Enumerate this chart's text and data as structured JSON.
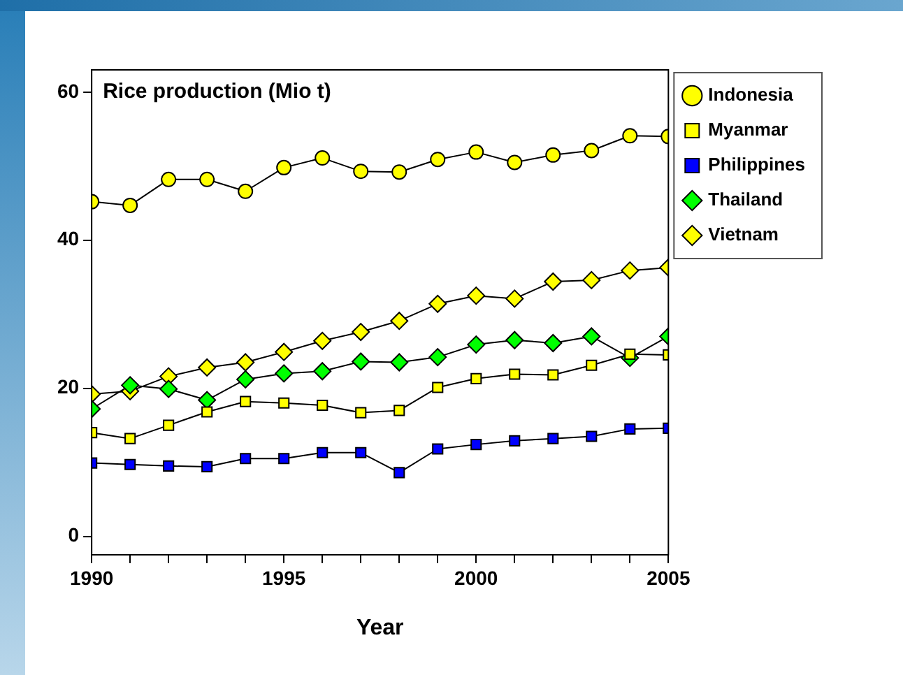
{
  "chart_data": {
    "type": "line",
    "title": "Rice production (Mio t)",
    "xlabel": "Year",
    "grid": false,
    "legend": "right",
    "line_style": "solid",
    "x": [
      1990,
      1991,
      1992,
      1993,
      1994,
      1995,
      1996,
      1997,
      1998,
      1999,
      2000,
      2001,
      2002,
      2003,
      2004,
      2005
    ],
    "xlim": [
      1990,
      2005
    ],
    "xticks": [
      1990,
      {
        "value": 1991,
        "label": null
      },
      {
        "value": 1992,
        "label": null
      },
      {
        "value": 1993,
        "label": null
      },
      {
        "value": 1994,
        "label": null
      },
      1995,
      {
        "value": 1996,
        "label": null
      },
      {
        "value": 1997,
        "label": null
      },
      {
        "value": 1998,
        "label": null
      },
      {
        "value": 1999,
        "label": null
      },
      2000,
      {
        "value": 2001,
        "label": null
      },
      {
        "value": 2002,
        "label": null
      },
      {
        "value": 2003,
        "label": null
      },
      {
        "value": 2004,
        "label": null
      },
      2005
    ],
    "ylim": [
      -2.5,
      63
    ],
    "yticks": [
      0,
      20,
      40,
      60
    ],
    "series": [
      {
        "name": "Indonesia",
        "color": "#ffff00",
        "marker": "circle",
        "values": [
          45.2,
          44.7,
          48.2,
          48.2,
          46.6,
          49.8,
          51.1,
          49.3,
          49.2,
          50.9,
          51.9,
          50.5,
          51.5,
          52.1,
          54.1,
          54.0
        ]
      },
      {
        "name": "Myanmar",
        "color": "#ffff00",
        "marker": "square",
        "values": [
          14.0,
          13.2,
          15.0,
          16.8,
          18.2,
          18.0,
          17.7,
          16.7,
          17.0,
          20.1,
          21.3,
          21.9,
          21.8,
          23.1,
          24.6,
          24.5
        ]
      },
      {
        "name": "Philippines",
        "color": "#0000ff",
        "marker": "square",
        "values": [
          9.9,
          9.7,
          9.5,
          9.4,
          10.5,
          10.5,
          11.3,
          11.3,
          8.6,
          11.8,
          12.4,
          12.9,
          13.2,
          13.5,
          14.5,
          14.6
        ]
      },
      {
        "name": "Thailand",
        "color": "#00ff00",
        "marker": "diamond",
        "values": [
          17.2,
          20.4,
          19.9,
          18.4,
          21.2,
          22.0,
          22.3,
          23.6,
          23.5,
          24.2,
          25.9,
          26.5,
          26.1,
          27.0,
          24.1,
          27.0
        ]
      },
      {
        "name": "Vietnam",
        "color": "#ffff00",
        "marker": "diamond",
        "values": [
          19.2,
          19.6,
          21.6,
          22.8,
          23.5,
          24.9,
          26.4,
          27.6,
          29.1,
          31.4,
          32.5,
          32.1,
          34.4,
          34.6,
          35.9,
          36.3
        ]
      }
    ]
  }
}
